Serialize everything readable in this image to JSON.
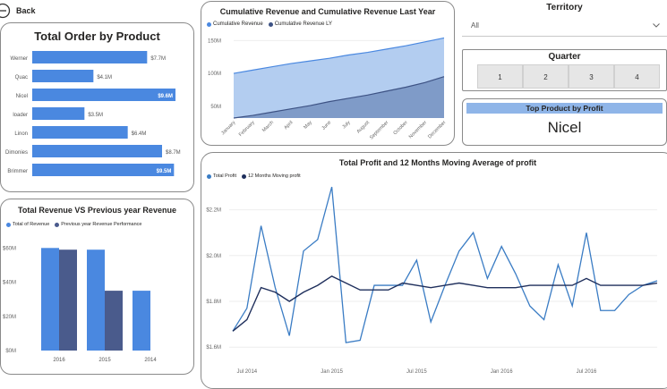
{
  "back": {
    "label": "Back"
  },
  "order_card": {
    "title": "Total Order by Product",
    "rows": [
      {
        "name": "Werner",
        "label": "$7.7M",
        "value": 7.7
      },
      {
        "name": "Quac",
        "label": "$4.1M",
        "value": 4.1
      },
      {
        "name": "Nicel",
        "label": "$9.6M",
        "value": 9.6
      },
      {
        "name": "loader",
        "label": "$3.5M",
        "value": 3.5
      },
      {
        "name": "Linon",
        "label": "$6.4M",
        "value": 6.4
      },
      {
        "name": "Dimonies",
        "label": "$8.7M",
        "value": 8.7
      },
      {
        "name": "Brimmer",
        "label": "$9.5M",
        "value": 9.5
      }
    ],
    "bar_color": "#4a88e0"
  },
  "revenue_card": {
    "title": "Total Revenue VS Previous year Revenue",
    "legend": [
      {
        "name": "Total  of Revenue",
        "color": "#4a88e0"
      },
      {
        "name": "Previous year Revenue Performance",
        "color": "#4a5b8c"
      }
    ],
    "y_ticks": [
      "$60M",
      "$40M",
      "$20M",
      "$0M"
    ],
    "categories": [
      "2016",
      "2015",
      "2014"
    ]
  },
  "cumulative_card": {
    "title": "Cumulative Revenue and Cumulative Revenue Last Year",
    "legend": [
      {
        "name": "Cumulative Revenue",
        "color": "#4a88e0"
      },
      {
        "name": "Cumulative Revenue LY",
        "color": "#3d5284"
      }
    ],
    "y_ticks": [
      "150M",
      "100M",
      "50M"
    ],
    "months": [
      "January",
      "February",
      "March",
      "April",
      "May",
      "June",
      "July",
      "August",
      "September",
      "October",
      "November",
      "December"
    ]
  },
  "territory": {
    "title": "Territory",
    "selected": "All"
  },
  "quarter": {
    "title": "Quarter",
    "buttons": [
      "1",
      "2",
      "3",
      "4"
    ]
  },
  "top_product": {
    "title": "Top Product by Profit",
    "value": "Nicel"
  },
  "profit_card": {
    "title": "Total Profit and 12 Months Moving Average of profit",
    "legend": [
      {
        "name": "Total Profit",
        "color": "#3a7cc4"
      },
      {
        "name": "12 Months Moving profit",
        "color": "#1f2f5c"
      }
    ],
    "y_ticks": [
      "$2.2M",
      "$2.0M",
      "$1.8M",
      "$1.6M"
    ],
    "x_ticks": [
      "Jul 2014",
      "Jan 2015",
      "Jul 2015",
      "Jan 2016",
      "Jul 2016"
    ]
  },
  "chart_data": [
    {
      "type": "bar",
      "title": "Total Order by Product",
      "categories": [
        "Werner",
        "Quac",
        "Nicel",
        "loader",
        "Linon",
        "Dimonies",
        "Brimmer"
      ],
      "values": [
        7.7,
        4.1,
        9.6,
        3.5,
        6.4,
        8.7,
        9.5
      ],
      "orientation": "horizontal"
    },
    {
      "type": "bar",
      "title": "Total Revenue VS Previous year Revenue",
      "categories": [
        "2016",
        "2015",
        "2014"
      ],
      "series": [
        {
          "name": "Total  of Revenue",
          "values": [
            60,
            59,
            35
          ]
        },
        {
          "name": "Previous year Revenue Performance",
          "values": [
            59,
            35,
            null
          ]
        }
      ],
      "ylim": [
        0,
        70
      ],
      "legend": "top-left"
    },
    {
      "type": "area",
      "title": "Cumulative Revenue and Cumulative Revenue Last Year",
      "categories": [
        "January",
        "February",
        "March",
        "April",
        "May",
        "June",
        "July",
        "August",
        "September",
        "October",
        "November",
        "December"
      ],
      "series": [
        {
          "name": "Cumulative Revenue",
          "values": [
            100,
            105,
            110,
            115,
            119,
            123,
            128,
            132,
            137,
            142,
            148,
            154
          ]
        },
        {
          "name": "Cumulative Revenue LY",
          "values": [
            32,
            36,
            41,
            46,
            51,
            57,
            62,
            67,
            73,
            79,
            86,
            95
          ]
        }
      ],
      "ylim": [
        32,
        160
      ],
      "legend": "top-left"
    },
    {
      "type": "line",
      "title": "Total Profit and 12 Months Moving Average of profit",
      "x": [
        "2014-06",
        "2014-07",
        "2014-08",
        "2014-09",
        "2014-10",
        "2014-11",
        "2014-12",
        "2015-01",
        "2015-02",
        "2015-03",
        "2015-04",
        "2015-05",
        "2015-06",
        "2015-07",
        "2015-08",
        "2015-09",
        "2015-10",
        "2015-11",
        "2015-12",
        "2016-01",
        "2016-02",
        "2016-03",
        "2016-04",
        "2016-05",
        "2016-06",
        "2016-07",
        "2016-08",
        "2016-09",
        "2016-10",
        "2016-11",
        "2016-12"
      ],
      "series": [
        {
          "name": "Total Profit",
          "values": [
            1.67,
            1.77,
            2.13,
            1.86,
            1.65,
            2.02,
            2.07,
            2.3,
            1.62,
            1.63,
            1.87,
            1.87,
            1.87,
            1.98,
            1.71,
            1.87,
            2.02,
            2.1,
            1.9,
            2.04,
            1.92,
            1.78,
            1.72,
            1.96,
            1.78,
            2.1,
            1.76,
            1.76,
            1.83,
            1.87,
            1.89
          ]
        },
        {
          "name": "12 Months Moving profit",
          "values": [
            1.67,
            1.72,
            1.86,
            1.84,
            1.8,
            1.84,
            1.87,
            1.91,
            1.88,
            1.85,
            1.85,
            1.85,
            1.88,
            1.87,
            1.86,
            1.87,
            1.88,
            1.87,
            1.86,
            1.86,
            1.86,
            1.87,
            1.87,
            1.87,
            1.87,
            1.9,
            1.87,
            1.87,
            1.87,
            1.87,
            1.88
          ]
        }
      ],
      "ylim": [
        1.55,
        2.3
      ],
      "legend": "top-left"
    }
  ]
}
